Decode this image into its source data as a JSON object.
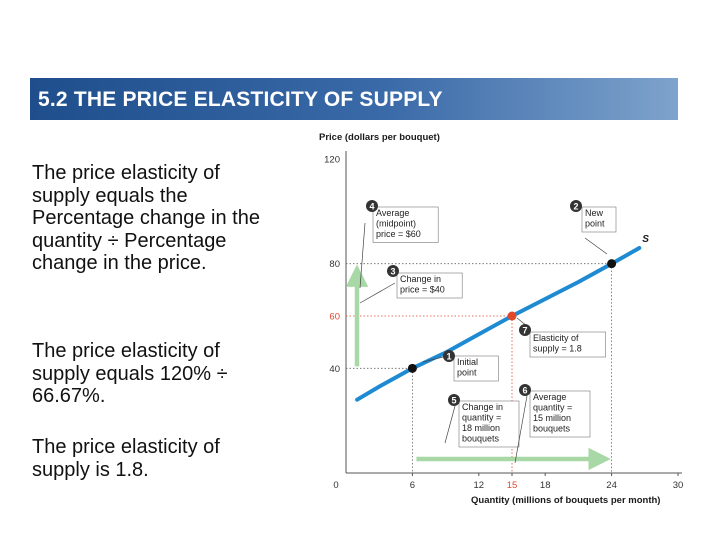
{
  "slide": {
    "title": "5.2  THE PRICE ELASTICITY OF SUPPLY",
    "paragraphs": [
      "The price elasticity of supply equals the Percentage change in the quantity ÷ Percentage change in the price.",
      "The price elasticity of supply equals 120% ÷ 66.67%.",
      "The price elasticity of supply is 1.8."
    ]
  },
  "colors": {
    "title_bar": "#2d5c99",
    "curve": "#1e8ad2",
    "arrow": "#a9d8a7",
    "highlight": "#e0482c",
    "badge": "#333333",
    "text": "#111111"
  },
  "chart_data": {
    "type": "line",
    "ylabel": "Price (dollars per bouquet)",
    "xlabel": "Quantity (millions of bouquets per month)",
    "xlim": [
      0,
      30
    ],
    "ylim": [
      0,
      120
    ],
    "x_ticks": [
      "0",
      "6",
      "12",
      "15",
      "18",
      "24",
      "30"
    ],
    "y_ticks": [
      "40",
      "60",
      "80",
      "120"
    ],
    "series": [
      {
        "name": "S",
        "x": [
          1,
          3,
          6,
          9,
          12,
          15,
          18,
          21,
          24,
          26.5
        ],
        "y": [
          28,
          33,
          40,
          46,
          53,
          60,
          66.5,
          73,
          80,
          86
        ]
      }
    ],
    "points": [
      {
        "x": 6,
        "y": 40,
        "role": "initial"
      },
      {
        "x": 24,
        "y": 80,
        "role": "new"
      },
      {
        "x": 15,
        "y": 60,
        "role": "midpoint"
      }
    ],
    "annotations": [
      {
        "num": "1",
        "lines": [
          "Initial",
          "point"
        ]
      },
      {
        "num": "2",
        "lines": [
          "New",
          "point"
        ]
      },
      {
        "num": "3",
        "lines": [
          "Change in",
          "price = $40"
        ]
      },
      {
        "num": "4",
        "lines": [
          "Average",
          "(midpoint)",
          "price = $60"
        ]
      },
      {
        "num": "5",
        "lines": [
          "Change in",
          "quantity =",
          "18 million",
          "bouquets"
        ]
      },
      {
        "num": "6",
        "lines": [
          "Average",
          "quantity =",
          "15 million",
          "bouquets"
        ]
      },
      {
        "num": "7",
        "lines": [
          "Elasticity of",
          "supply = 1.8"
        ]
      }
    ]
  }
}
